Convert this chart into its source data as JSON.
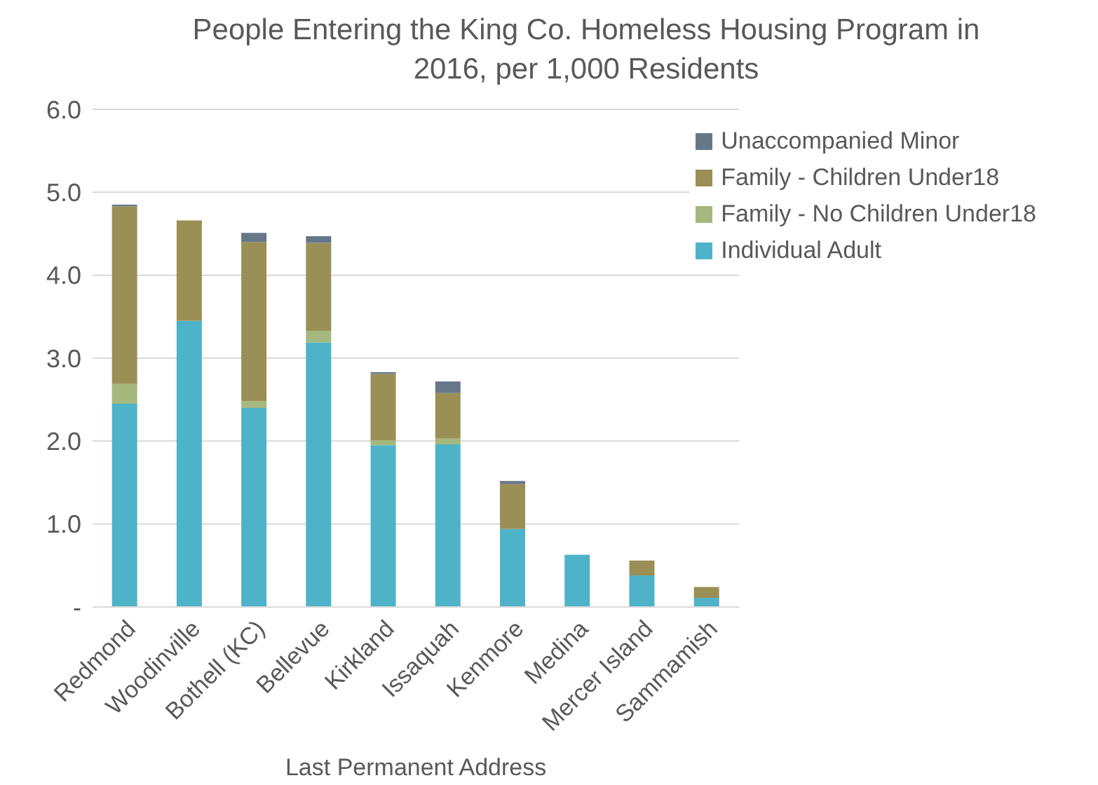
{
  "chart_data": {
    "type": "bar",
    "title": "People Entering the King Co. Homeless Housing Program in 2016, per 1,000 Residents",
    "xlabel": "Last Permanent Address",
    "categories": [
      "Redmond",
      "Woodinville",
      "Bothell (KC)",
      "Bellevue",
      "Kirkland",
      "Issaquah",
      "Kenmore",
      "Medina",
      "Mercer Island",
      "Sammamish"
    ],
    "stacked": true,
    "series": [
      {
        "name": "Individual Adult",
        "color": "#4eb3c8",
        "values": [
          2.45,
          3.45,
          2.4,
          3.19,
          1.95,
          1.96,
          0.94,
          0.63,
          0.38,
          0.11
        ]
      },
      {
        "name": "Family - No Children Under18",
        "color": "#a5b87e",
        "values": [
          0.24,
          0,
          0.08,
          0.14,
          0.06,
          0.07,
          0,
          0,
          0,
          0
        ]
      },
      {
        "name": "Family - Children Under18",
        "color": "#9a8f55",
        "values": [
          2.14,
          1.21,
          1.92,
          1.06,
          0.8,
          0.55,
          0.54,
          0,
          0.18,
          0.13
        ]
      },
      {
        "name": "Unaccompanied Minor",
        "color": "#667788",
        "values": [
          0.02,
          0,
          0.11,
          0.08,
          0.02,
          0.14,
          0.04,
          0,
          0,
          0
        ]
      }
    ],
    "ylim": [
      0,
      6
    ],
    "yticks": [
      {
        "value": 0,
        "label": "-"
      },
      {
        "value": 1,
        "label": "1.0"
      },
      {
        "value": 2,
        "label": "2.0"
      },
      {
        "value": 3,
        "label": "3.0"
      },
      {
        "value": 4,
        "label": "4.0"
      },
      {
        "value": 5,
        "label": "5.0"
      },
      {
        "value": 6,
        "label": "6.0"
      }
    ],
    "grid": "y",
    "legend": "top right"
  }
}
